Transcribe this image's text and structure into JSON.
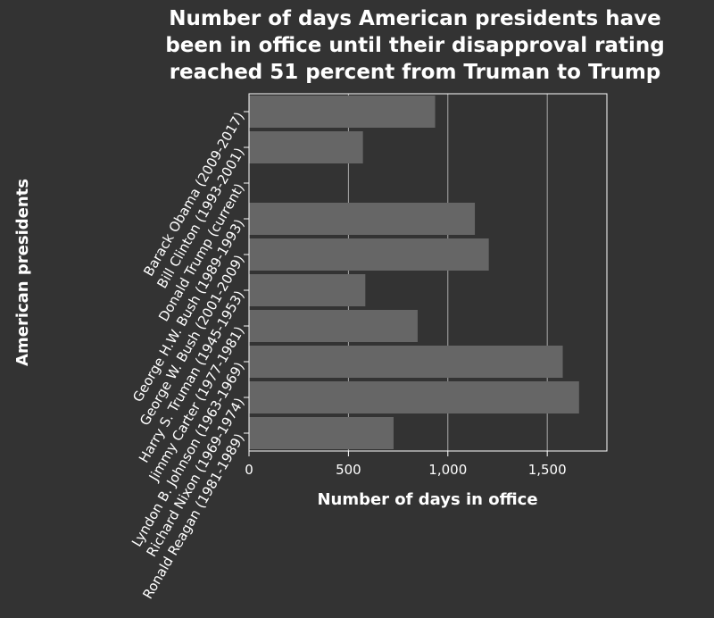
{
  "chart_data": {
    "type": "bar",
    "orientation": "horizontal",
    "title_lines": [
      "Number of days American presidents have",
      "been in office until their disapproval rating",
      "reached 51 percent from Truman to Trump"
    ],
    "xlabel": "Number of days in office",
    "ylabel": "American presidents",
    "xlim": [
      0,
      1800
    ],
    "xticks": [
      0,
      500,
      1000,
      1500
    ],
    "xtick_labels": [
      "0",
      "500",
      "1,000",
      "1,500"
    ],
    "grid": "vertical",
    "categories": [
      "Barack Obama (2009-2017)",
      "Bill Clinton (1993-2001)",
      "Donald Trump (current)",
      "George H.W. Bush (1989-1993)",
      "George W. Bush (2001-2009)",
      "Harry S. Truman (1945-1953)",
      "Jimmy Carter (1977-1981)",
      "Lyndon B. Johnson (1963-1969)",
      "Richard Nixon (1969-1974)",
      "Ronald Reagan (1981-1989)"
    ],
    "values": [
      936,
      573,
      0,
      1136,
      1206,
      585,
      848,
      1578,
      1660,
      727
    ],
    "colors": {
      "background": "#333333",
      "bar": "#666666",
      "grid": "#aaaaaa",
      "text": "#ffffff"
    }
  }
}
